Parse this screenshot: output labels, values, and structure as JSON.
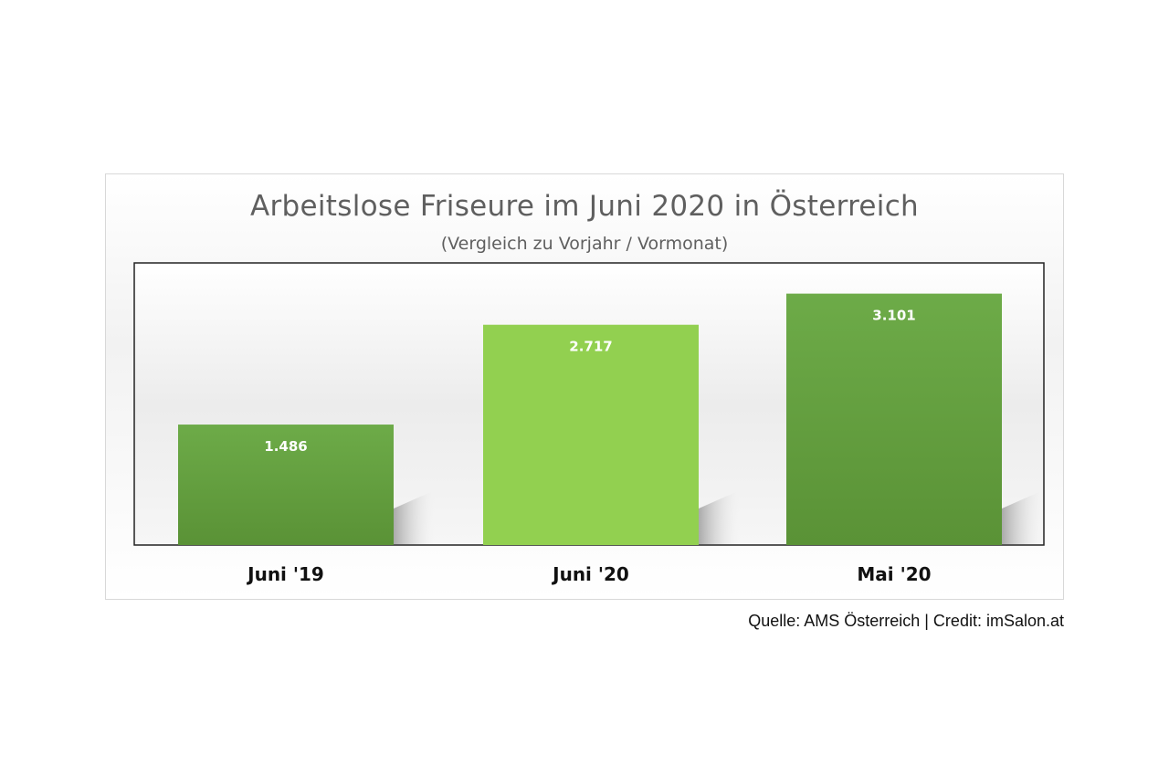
{
  "chart_data": {
    "type": "bar",
    "title": "Arbeitslose Friseure im Juni 2020 in Österreich",
    "subtitle": "(Vergleich zu Vorjahr  / Vormonat)",
    "categories": [
      "Juni '19",
      "Juni '20",
      "Mai '20"
    ],
    "values": [
      1486,
      2717,
      3101
    ],
    "data_labels": [
      "1.486",
      "2.717",
      "3.101"
    ],
    "bar_colors": [
      "#66a444",
      "#92d050",
      "#66a444"
    ],
    "grid": false,
    "legend": "none"
  },
  "source": "Quelle: AMS Österreich | Credit: imSalon.at"
}
